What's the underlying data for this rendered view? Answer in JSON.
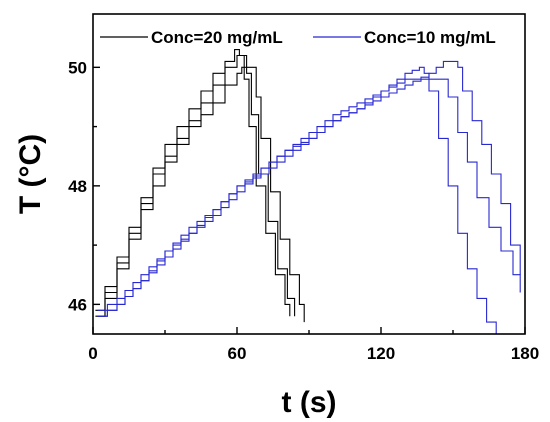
{
  "chart_data": {
    "type": "line",
    "xlabel": "t (s)",
    "ylabel": "T (°C)",
    "xlim": [
      0,
      180
    ],
    "ylim": [
      45.5,
      50.9
    ],
    "xticks": [
      0,
      60,
      120,
      180
    ],
    "yticks": [
      46,
      48,
      50
    ],
    "grid": false,
    "legend_position": "top",
    "series": [
      {
        "name": "Conc=20 mg/mL",
        "color": "#000000",
        "runs": [
          {
            "x": [
              1,
              5,
              10,
              15,
              20,
              25,
              30,
              35,
              40,
              45,
              50,
              55,
              59,
              61,
              63,
              65,
              68,
              72,
              76,
              80,
              82
            ],
            "y": [
              45.8,
              46.3,
              46.8,
              47.3,
              47.8,
              48.3,
              48.7,
              49.0,
              49.3,
              49.6,
              49.9,
              50.1,
              50.3,
              50.2,
              49.8,
              49.0,
              48.0,
              47.2,
              46.5,
              46.0,
              45.8
            ]
          },
          {
            "x": [
              1,
              5,
              10,
              15,
              20,
              25,
              30,
              35,
              40,
              45,
              50,
              55,
              60,
              62,
              64,
              66,
              69,
              73,
              77,
              81,
              84
            ],
            "y": [
              45.9,
              46.2,
              46.7,
              47.2,
              47.7,
              48.2,
              48.5,
              48.8,
              49.1,
              49.4,
              49.7,
              50.0,
              50.2,
              50.2,
              49.9,
              49.2,
              48.2,
              47.4,
              46.6,
              46.1,
              45.8
            ]
          },
          {
            "x": [
              2,
              5,
              10,
              15,
              20,
              25,
              30,
              35,
              40,
              45,
              50,
              55,
              60,
              62,
              64,
              66,
              68,
              70,
              74,
              78,
              82,
              86,
              88
            ],
            "y": [
              45.8,
              46.1,
              46.6,
              47.1,
              47.6,
              48.0,
              48.4,
              48.7,
              49.0,
              49.2,
              49.4,
              49.7,
              49.9,
              50.0,
              50.0,
              50.0,
              49.5,
              48.8,
              47.9,
              47.1,
              46.5,
              46.0,
              45.7
            ]
          }
        ]
      },
      {
        "name": "Conc=10 mg/mL",
        "color": "#2828d0",
        "runs": [
          {
            "x": [
              2,
              10,
              20,
              30,
              40,
              50,
              60,
              70,
              80,
              90,
              100,
              110,
              120,
              130,
              136,
              138,
              140,
              144,
              148,
              152,
              156,
              160,
              164,
              168
            ],
            "y": [
              45.8,
              46.0,
              46.4,
              46.8,
              47.2,
              47.5,
              47.9,
              48.3,
              48.6,
              48.8,
              49.1,
              49.3,
              49.6,
              49.9,
              50.0,
              49.9,
              49.6,
              48.8,
              48.0,
              47.2,
              46.6,
              46.1,
              45.7,
              45.5
            ]
          },
          {
            "x": [
              2,
              10,
              20,
              30,
              40,
              50,
              60,
              70,
              80,
              90,
              100,
              110,
              120,
              130,
              140,
              146,
              148,
              152,
              156,
              160,
              165,
              170,
              175,
              178
            ],
            "y": [
              45.8,
              46.0,
              46.4,
              46.9,
              47.3,
              47.6,
              48.0,
              48.3,
              48.6,
              48.9,
              49.2,
              49.4,
              49.6,
              49.8,
              49.8,
              49.8,
              49.5,
              48.9,
              48.4,
              47.8,
              47.3,
              46.9,
              46.5,
              46.2
            ]
          },
          {
            "x": [
              2,
              10,
              20,
              30,
              40,
              50,
              60,
              70,
              80,
              90,
              100,
              110,
              120,
              130,
              140,
              146,
              150,
              152,
              154,
              158,
              162,
              166,
              170,
              174,
              178
            ],
            "y": [
              45.9,
              46.1,
              46.5,
              46.9,
              47.2,
              47.6,
              48.0,
              48.2,
              48.5,
              48.8,
              49.1,
              49.3,
              49.5,
              49.7,
              49.9,
              50.1,
              50.1,
              50.0,
              49.6,
              49.1,
              48.7,
              48.2,
              47.7,
              47.0,
              46.5
            ]
          }
        ]
      }
    ]
  }
}
